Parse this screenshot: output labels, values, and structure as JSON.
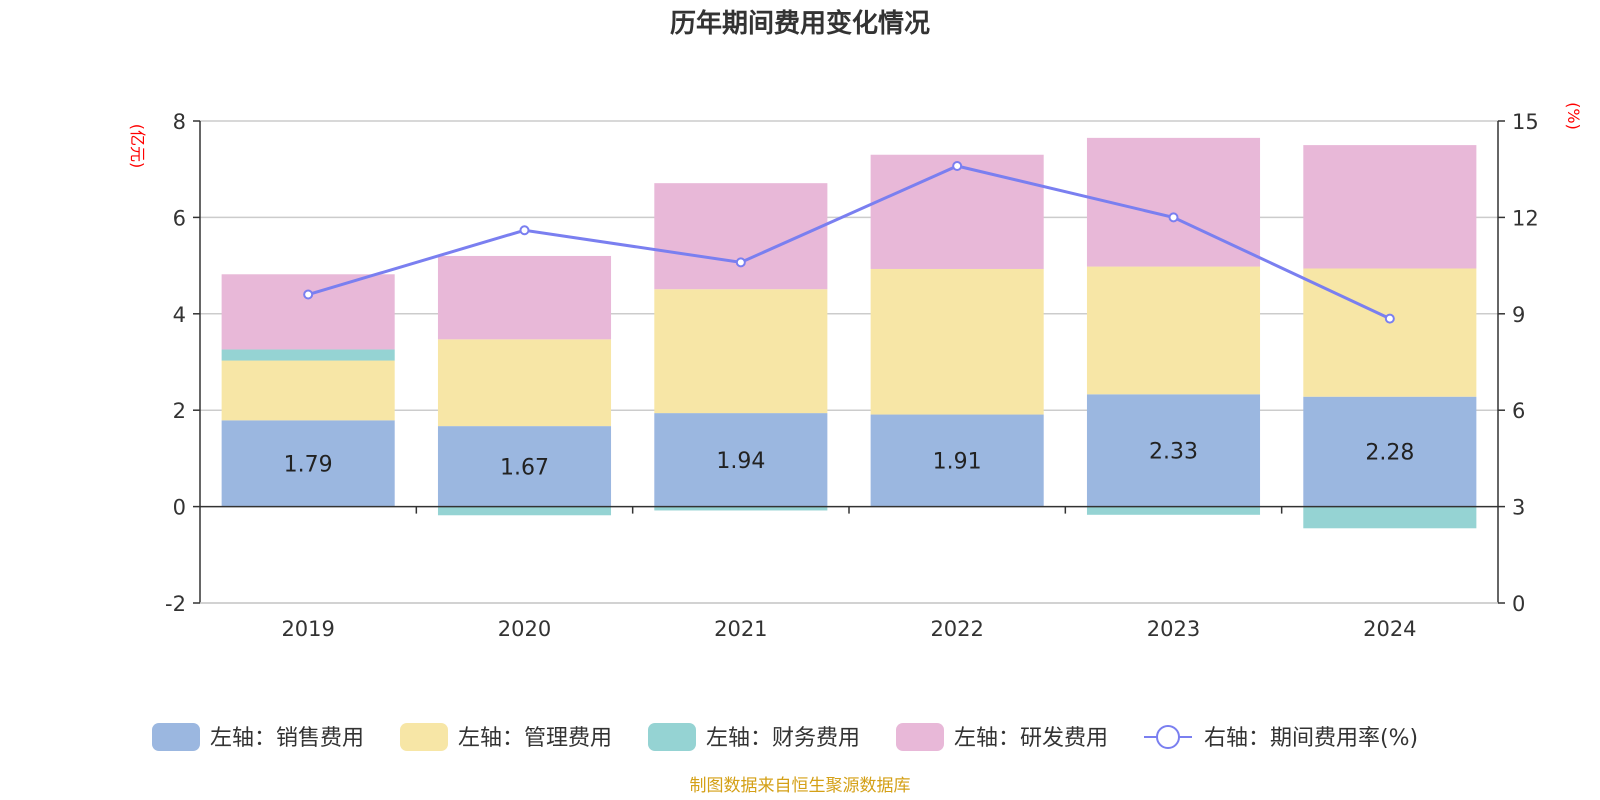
{
  "chart_data": {
    "type": "bar",
    "title": "历年期间费用变化情况",
    "categories": [
      "2019",
      "2020",
      "2021",
      "2022",
      "2023",
      "2024"
    ],
    "left_axis": {
      "unit_label": "(亿元)",
      "ylim": [
        -2,
        8
      ],
      "ticks": [
        -2,
        0,
        2,
        4,
        6,
        8
      ]
    },
    "right_axis": {
      "unit_label": "(%)",
      "ylim": [
        0,
        15
      ],
      "ticks": [
        0,
        3,
        6,
        9,
        12,
        15
      ]
    },
    "stacked": true,
    "series": [
      {
        "name": "左轴：销售费用",
        "axis": "left",
        "color": "#9bb7e0",
        "values": [
          1.79,
          1.67,
          1.94,
          1.91,
          2.33,
          2.28
        ],
        "show_labels": true
      },
      {
        "name": "左轴：管理费用",
        "axis": "left",
        "color": "#f7e6a6",
        "values": [
          1.24,
          1.8,
          2.57,
          3.02,
          2.65,
          2.66
        ]
      },
      {
        "name": "左轴：财务费用",
        "axis": "left",
        "color": "#95d3d3",
        "values": [
          0.23,
          -0.18,
          -0.08,
          0.0,
          -0.17,
          -0.45
        ]
      },
      {
        "name": "左轴：研发费用",
        "axis": "left",
        "color": "#e8b8d8",
        "values": [
          1.56,
          1.73,
          2.2,
          2.37,
          2.67,
          2.56
        ]
      }
    ],
    "line_series": [
      {
        "name": "右轴：期间费用率(%)",
        "axis": "right",
        "color": "#7a7ff0",
        "values": [
          9.6,
          11.6,
          10.6,
          13.6,
          12.0,
          8.85
        ]
      }
    ],
    "grid": true,
    "legend_position": "bottom"
  },
  "source_note": "制图数据来自恒生聚源数据库",
  "colors": {
    "axis": "#333333",
    "grid": "#cccccc",
    "unit": "#ff0000",
    "source": "#d4a017"
  }
}
